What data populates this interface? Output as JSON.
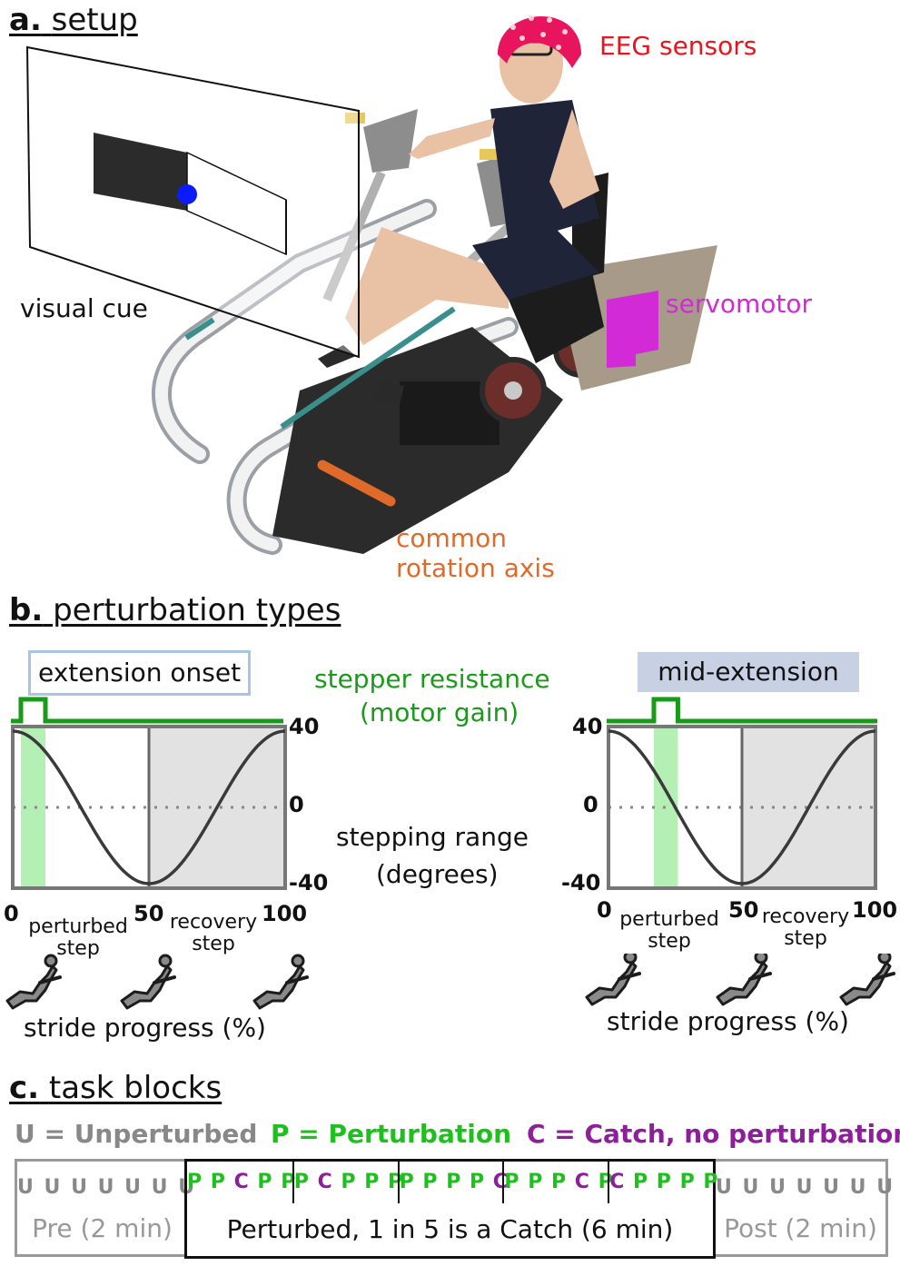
{
  "colors": {
    "eeg": "#e8151e",
    "servo": "#d22ad6",
    "axis": "#e06a2a",
    "green": "#1a9a1a",
    "green_light": "#b4f0b4",
    "purple": "#8e1f9a",
    "gray": "#888888",
    "shade": "#e2e2e2",
    "cue_dot": "#0a1cff",
    "badge_left_border": "#a8c6e4",
    "badge_right_fill": "#c8d0e4"
  },
  "section_a": {
    "letter": "a.",
    "title": "setup",
    "visual_cue": "visual cue",
    "eeg_sensors": "EEG sensors",
    "servomotor": "servomotor",
    "axis_line1": "common",
    "axis_line2": "rotation axis"
  },
  "section_b": {
    "letter": "b.",
    "title": "perturbation types",
    "resistance_line1": "stepper resistance",
    "resistance_line2": "(motor gain)",
    "range_line1": "stepping range",
    "range_line2": "(degrees)",
    "left_panel": {
      "badge": "extension onset",
      "y_ticks": [
        "40",
        "0",
        "-40"
      ],
      "x_ticks": [
        "0",
        "50",
        "100"
      ],
      "perturbed_step_line1": "perturbed",
      "perturbed_step_line2": "step",
      "recovery_step_line1": "recovery",
      "recovery_step_line2": "step",
      "xlabel": "stride progress (%)",
      "perturbation_window_pct": [
        3,
        12
      ]
    },
    "right_panel": {
      "badge": "mid-extension",
      "y_ticks": [
        "40",
        "0",
        "-40"
      ],
      "x_ticks": [
        "0",
        "50",
        "100"
      ],
      "perturbed_step_line1": "perturbed",
      "perturbed_step_line2": "step",
      "recovery_step_line1": "recovery",
      "recovery_step_line2": "step",
      "xlabel": "stride progress (%)",
      "perturbation_window_pct": [
        17,
        26
      ]
    }
  },
  "section_c": {
    "letter": "c.",
    "title": "task blocks",
    "legend_u": "U = Unperturbed",
    "legend_p": "P = Perturbation",
    "legend_c": "C = Catch, no perturbation",
    "pre_sequence": [
      "U",
      "U",
      "U",
      "U",
      "U",
      "U",
      "U"
    ],
    "pre_label": "Pre (2 min)",
    "perturbed_groups": [
      [
        "P",
        "P",
        "C",
        "P",
        "P"
      ],
      [
        "P",
        "C",
        "P",
        "P",
        "P"
      ],
      [
        "P",
        "P",
        "P",
        "P",
        "C"
      ],
      [
        "P",
        "P",
        "P",
        "C",
        "P"
      ],
      [
        "C",
        "P",
        "P",
        "P",
        "P"
      ]
    ],
    "perturbed_label": "Perturbed, 1 in 5 is a Catch (6 min)",
    "post_sequence": [
      "U",
      "U",
      "U",
      "U",
      "U",
      "U",
      "U"
    ],
    "post_label": "Post (2 min)"
  }
}
